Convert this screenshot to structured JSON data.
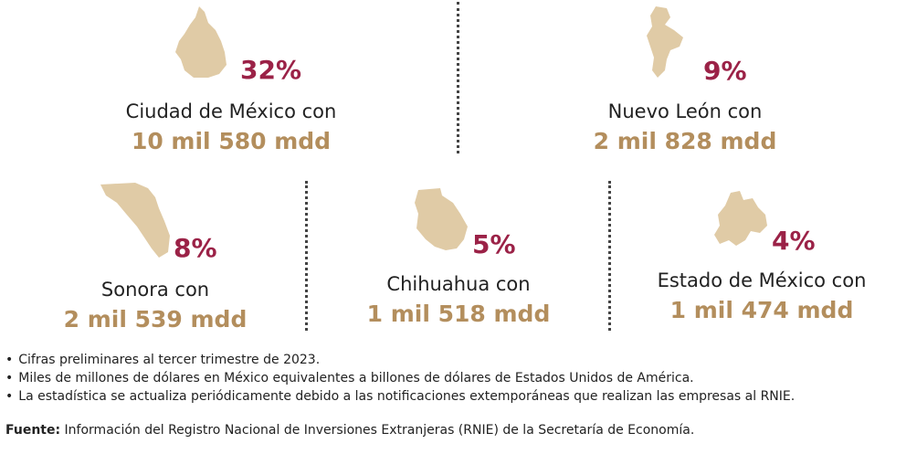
{
  "states": [
    {
      "name": "Ciudad de México con",
      "percent": "32%",
      "amount": "10 mil 580 mdd",
      "map_icon": "cdmx-map-icon"
    },
    {
      "name": "Nuevo León con",
      "percent": "9%",
      "amount": "2 mil 828 mdd",
      "map_icon": "nuevo-leon-map-icon"
    },
    {
      "name": "Sonora con",
      "percent": "8%",
      "amount": "2 mil 539 mdd",
      "map_icon": "sonora-map-icon"
    },
    {
      "name": "Chihuahua con",
      "percent": "5%",
      "amount": "1 mil 518 mdd",
      "map_icon": "chihuahua-map-icon"
    },
    {
      "name": "Estado de México con",
      "percent": "4%",
      "amount": "1 mil 474 mdd",
      "map_icon": "estado-de-mexico-map-icon"
    }
  ],
  "notes": [
    "Cifras preliminares al tercer trimestre de 2023.",
    "Miles de millones de dólares en México equivalentes a billones de dólares de Estados Unidos de América.",
    "La estadística se actualiza periódicamente debido a las notificaciones extemporáneas que realizan las empresas al RNIE."
  ],
  "source": {
    "label": "Fuente:",
    "text": " Información del Registro Nacional de Inversiones Extranjeras (RNIE) de la Secretaría de Economía."
  },
  "colors": {
    "percent": "#9b2247",
    "amount": "#b38e5d",
    "map": "#e0cba6"
  }
}
